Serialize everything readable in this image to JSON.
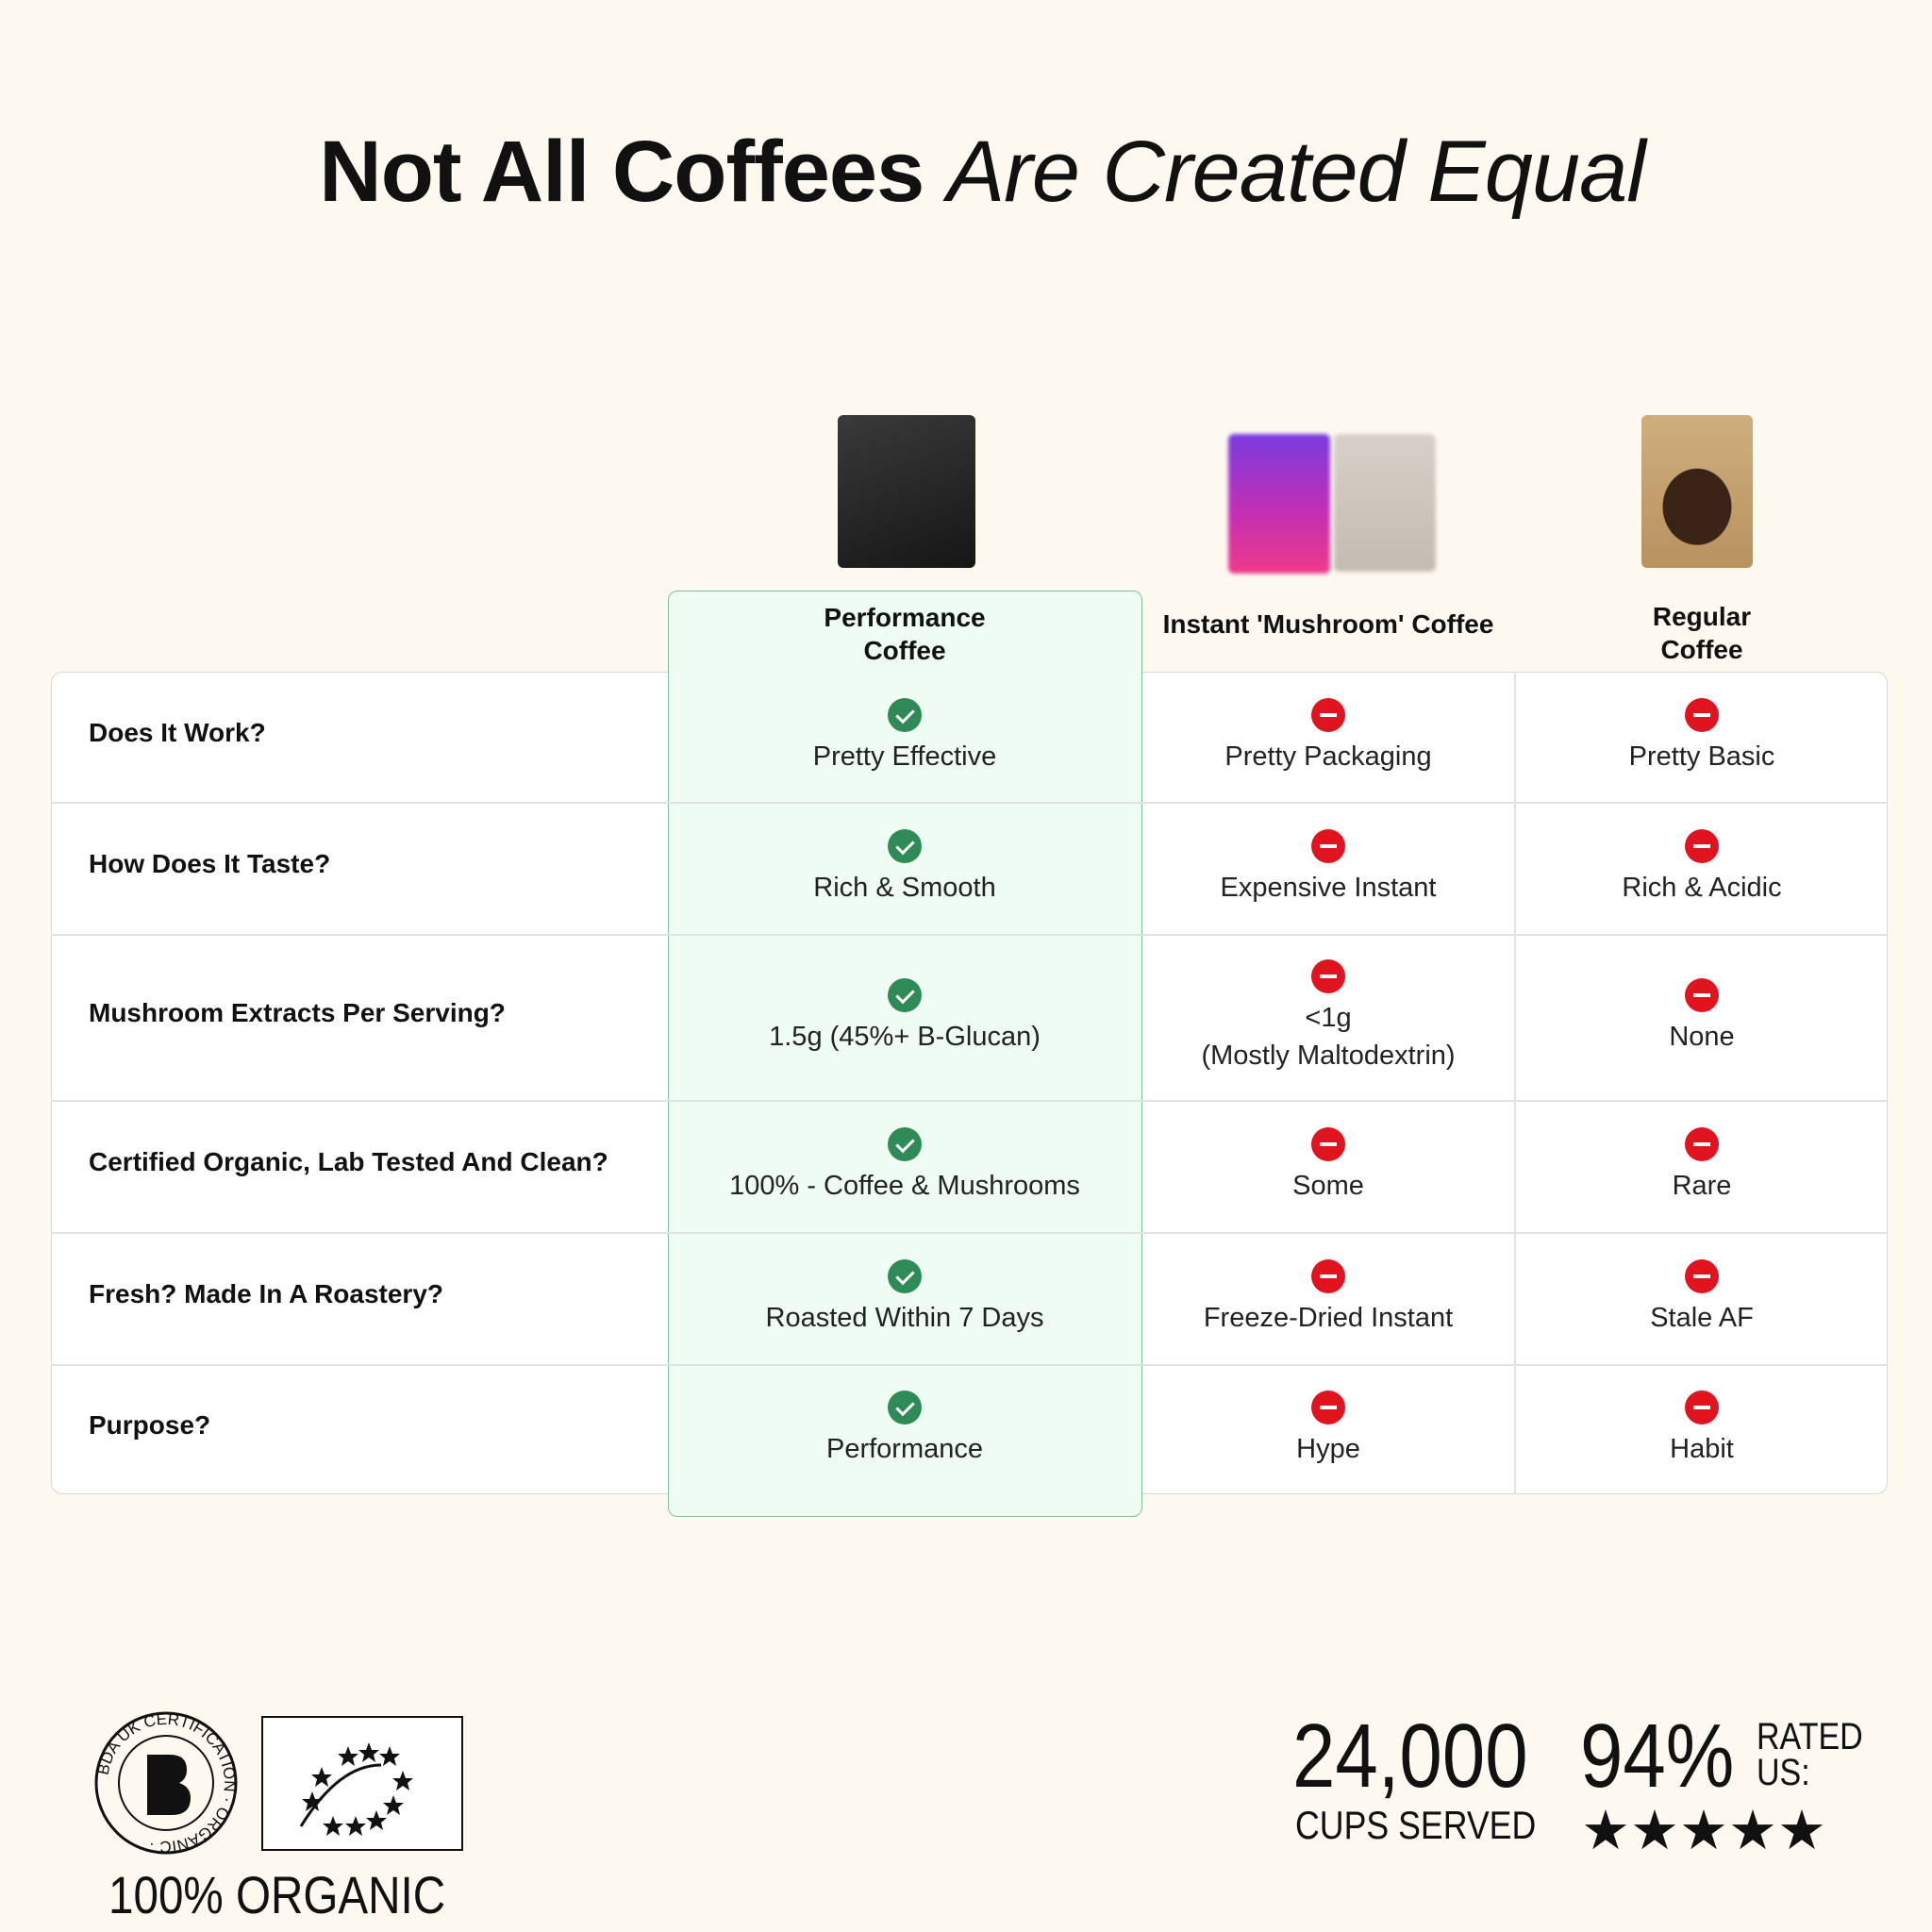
{
  "title": {
    "bold": "Not All Coffees",
    "italic": "Are Created Equal"
  },
  "columns": [
    {
      "label": "Performance\nCoffee",
      "line1": "Performance",
      "line2": "Coffee"
    },
    {
      "label": "Instant 'Mushroom' Coffee"
    },
    {
      "label": "Regular\nCoffee",
      "line1": "Regular",
      "line2": "Coffee"
    }
  ],
  "rows": [
    {
      "label": "Does It Work?",
      "values": [
        "Pretty Effective",
        "Pretty Packaging",
        "Pretty Basic"
      ],
      "status": [
        "check",
        "minus",
        "minus"
      ]
    },
    {
      "label": "How Does It Taste?",
      "values": [
        "Rich & Smooth",
        "Expensive Instant",
        "Rich & Acidic"
      ],
      "status": [
        "check",
        "minus",
        "minus"
      ]
    },
    {
      "label": "Mushroom Extracts Per Serving?",
      "values": [
        "1.5g (45%+ B-Glucan)",
        "<1g\n(Mostly Maltodextrin)",
        "None"
      ],
      "status": [
        "check",
        "minus",
        "minus"
      ]
    },
    {
      "label": "Certified Organic, Lab Tested And Clean?",
      "values": [
        "100% - Coffee & Mushrooms",
        "Some",
        "Rare"
      ],
      "status": [
        "check",
        "minus",
        "minus"
      ]
    },
    {
      "label": "Fresh? Made In A Roastery?",
      "values": [
        "Roasted Within 7 Days",
        "Freeze-Dried Instant",
        "Stale AF"
      ],
      "status": [
        "check",
        "minus",
        "minus"
      ]
    },
    {
      "label": "Purpose?",
      "values": [
        "Performance",
        "Hype",
        "Habit"
      ],
      "status": [
        "check",
        "minus",
        "minus"
      ]
    }
  ],
  "footer": {
    "organic_label": "100% ORGANIC",
    "bda_logo_text": "BDA UK CERTIFICATION · ORGANIC ·",
    "cups": "24,000",
    "cups_label": "CUPS SERVED",
    "rating": "94%",
    "rated_label1": "RATED",
    "rated_label2": "US:",
    "stars": 5
  },
  "colors": {
    "check": "#2e8b57",
    "minus": "#e0141e",
    "highlight_bg": "#effcf4",
    "highlight_border": "#7fbf99",
    "page_bg": "#fdf9f1"
  }
}
